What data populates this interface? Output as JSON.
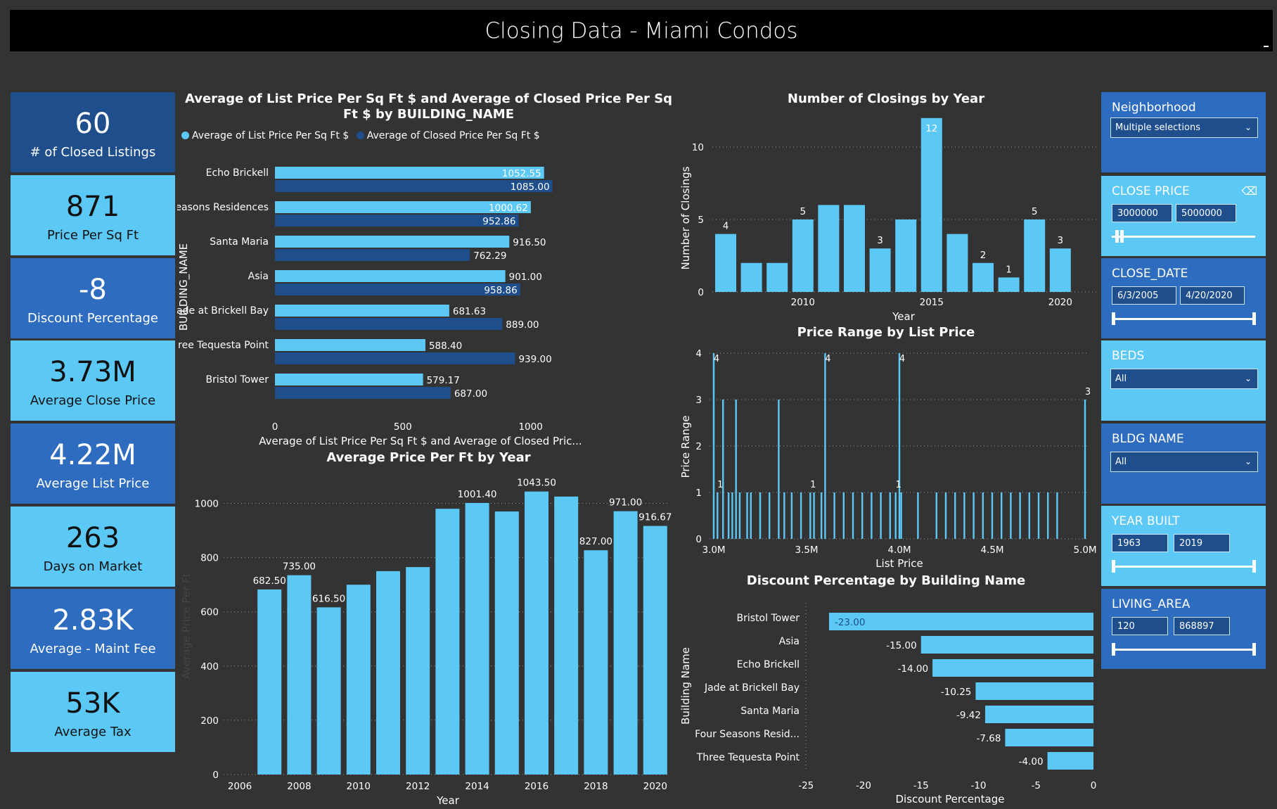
{
  "window": {
    "title": "Closing Data - Miami Condos"
  },
  "kpis": [
    {
      "value": "60",
      "label": "# of Closed Listings"
    },
    {
      "value": "871",
      "label": "Price Per Sq Ft"
    },
    {
      "value": "-8",
      "label": "Discount Percentage"
    },
    {
      "value": "3.73M",
      "label": "Average Close Price"
    },
    {
      "value": "4.22M",
      "label": "Average List Price"
    },
    {
      "value": "263",
      "label": "Days on Market"
    },
    {
      "value": "2.83K",
      "label": "Average - Maint Fee"
    },
    {
      "value": "53K",
      "label": "Average Tax"
    }
  ],
  "slicers": {
    "neighborhood": {
      "label": "Neighborhood",
      "value": "Multiple selections"
    },
    "close_price": {
      "label": "CLOSE PRICE",
      "min": "3000000",
      "max": "5000000"
    },
    "close_date": {
      "label": "CLOSE_DATE",
      "min": "6/3/2005",
      "max": "4/20/2020"
    },
    "beds": {
      "label": "BEDS",
      "value": "All"
    },
    "bldg_name": {
      "label": "BLDG NAME",
      "value": "All"
    },
    "year_built": {
      "label": "YEAR BUILT",
      "min": "1963",
      "max": "2019"
    },
    "living_area": {
      "label": "LIVING_AREA",
      "min": "120",
      "max": "868897"
    }
  },
  "colors": {
    "light": "#5bc8f5",
    "dark": "#1f4e8c",
    "mid": "#2e6cc0",
    "bg": "#333333"
  },
  "icons": {
    "dropdown": "chevron-down-icon",
    "clear": "eraser-icon"
  },
  "chart_data": [
    {
      "type": "bar",
      "orientation": "horizontal",
      "title": "Average of List Price Per Sq Ft $ and Average of Closed Price Per Sq Ft $ by BUILDING_NAME",
      "xlabel": "Average of List Price Per Sq Ft $ and Average of Closed Pric...",
      "ylabel": "BUILDING_NAME",
      "categories": [
        "Echo Brickell",
        "Four Seasons Residences",
        "Santa Maria",
        "Asia",
        "Jade at Brickell Bay",
        "Three Tequesta Point",
        "Bristol Tower"
      ],
      "series": [
        {
          "name": "Average of List Price Per Sq Ft $",
          "values": [
            1052.55,
            1000.62,
            916.5,
            901.0,
            681.63,
            588.4,
            579.17
          ],
          "labels": [
            "1052.55",
            "1000.62",
            "916.50",
            "901.00",
            "681.63",
            "588.40",
            "579.17"
          ]
        },
        {
          "name": "Average of Closed Price Per Sq Ft $",
          "values": [
            1085.0,
            952.86,
            762.29,
            958.86,
            889.0,
            939.0,
            687.0
          ],
          "labels": [
            "1085.00",
            "952.86",
            "762.29",
            "958.86",
            "889.00",
            "939.00",
            "687.00"
          ]
        }
      ],
      "xlim": [
        0,
        1100
      ],
      "xticks": [
        "0",
        "500",
        "1000"
      ],
      "legend": "top-left"
    },
    {
      "type": "bar",
      "title": "Number of Closings by Year",
      "xlabel": "Year",
      "ylabel": "Number of Closings",
      "x": [
        2007,
        2008,
        2009,
        2010,
        2011,
        2012,
        2013,
        2014,
        2015,
        2016,
        2017,
        2018,
        2019,
        2020
      ],
      "values": [
        4,
        2,
        2,
        5,
        6,
        6,
        3,
        5,
        12,
        4,
        2,
        1,
        5,
        3
      ],
      "labels": [
        "4",
        "",
        "",
        "5",
        "",
        "",
        "3",
        "",
        "12",
        "",
        "2",
        "1",
        "5",
        "3"
      ],
      "ylim": [
        0,
        12
      ],
      "yticks": [
        "0",
        "5",
        "10"
      ],
      "xticks": [
        "2010",
        "2015",
        "2020"
      ],
      "grid": true
    },
    {
      "type": "bar",
      "title": "Price Range by List Price",
      "xlabel": "List Price",
      "ylabel": "Price Range",
      "points": [
        [
          3.0,
          4
        ],
        [
          3.02,
          1
        ],
        [
          3.05,
          3
        ],
        [
          3.08,
          1
        ],
        [
          3.1,
          1
        ],
        [
          3.12,
          3
        ],
        [
          3.14,
          1
        ],
        [
          3.18,
          1
        ],
        [
          3.2,
          1
        ],
        [
          3.25,
          1
        ],
        [
          3.3,
          1
        ],
        [
          3.35,
          3
        ],
        [
          3.38,
          1
        ],
        [
          3.42,
          1
        ],
        [
          3.47,
          1
        ],
        [
          3.52,
          1
        ],
        [
          3.54,
          1
        ],
        [
          3.58,
          1
        ],
        [
          3.6,
          4
        ],
        [
          3.65,
          1
        ],
        [
          3.7,
          1
        ],
        [
          3.75,
          1
        ],
        [
          3.8,
          1
        ],
        [
          3.85,
          1
        ],
        [
          3.9,
          1
        ],
        [
          3.95,
          1
        ],
        [
          3.98,
          1
        ],
        [
          4.0,
          4
        ],
        [
          4.01,
          1
        ],
        [
          4.1,
          1
        ],
        [
          4.2,
          1
        ],
        [
          4.25,
          1
        ],
        [
          4.3,
          1
        ],
        [
          4.35,
          1
        ],
        [
          4.4,
          1
        ],
        [
          4.45,
          1
        ],
        [
          4.5,
          1
        ],
        [
          4.55,
          1
        ],
        [
          4.6,
          1
        ],
        [
          4.65,
          1
        ],
        [
          4.7,
          1
        ],
        [
          4.75,
          1
        ],
        [
          4.8,
          1
        ],
        [
          4.85,
          1
        ],
        [
          5.0,
          3
        ]
      ],
      "labels": [
        {
          "x": 3.0,
          "text": "4"
        },
        {
          "x": 3.02,
          "text": "1"
        },
        {
          "x": 3.52,
          "text": "1"
        },
        {
          "x": 3.6,
          "text": "4"
        },
        {
          "x": 3.98,
          "text": "1"
        },
        {
          "x": 4.0,
          "text": "4"
        },
        {
          "x": 5.0,
          "text": "3"
        }
      ],
      "xlim": [
        3.0,
        5.0
      ],
      "ylim": [
        0,
        4
      ],
      "xticks": [
        "3.0M",
        "3.5M",
        "4.0M",
        "4.5M",
        "5.0M"
      ],
      "yticks": [
        "0",
        "1",
        "2",
        "3",
        "4"
      ],
      "grid": true
    },
    {
      "type": "bar",
      "title": "Average Price Per Ft by Year",
      "xlabel": "Year",
      "ylabel": "Average Price Per Ft",
      "x": [
        2007,
        2008,
        2009,
        2010,
        2011,
        2012,
        2013,
        2014,
        2015,
        2016,
        2017,
        2018,
        2019,
        2020
      ],
      "values": [
        682.5,
        735.0,
        616.5,
        700,
        750,
        765,
        980,
        1001.4,
        970,
        1043.5,
        1025,
        827.0,
        971.0,
        916.67
      ],
      "labels": [
        "682.50",
        "735.00",
        "616.50",
        "",
        "",
        "",
        "",
        "1001.40",
        "",
        "1043.50",
        "",
        "827.00",
        "971.00",
        "916.67"
      ],
      "ylim": [
        0,
        1100
      ],
      "yticks": [
        "0",
        "200",
        "400",
        "600",
        "800",
        "1000"
      ],
      "xticks": [
        "2006",
        "2008",
        "2010",
        "2012",
        "2014",
        "2016",
        "2018",
        "2020"
      ],
      "grid": true
    },
    {
      "type": "bar",
      "orientation": "horizontal",
      "title": "Discount Percentage by Building Name",
      "xlabel": "Discount Percentage",
      "ylabel": "Building Name",
      "categories": [
        "Bristol Tower",
        "Asia",
        "Echo Brickell",
        "Jade at Brickell Bay",
        "Santa Maria",
        "Four Seasons Resid...",
        "Three Tequesta Point"
      ],
      "values": [
        -23.0,
        -15.0,
        -14.0,
        -10.25,
        -9.42,
        -7.68,
        -4.0
      ],
      "labels": [
        "-23.00",
        "-15.00",
        "-14.00",
        "-10.25",
        "-9.42",
        "-7.68",
        "-4.00"
      ],
      "xlim": [
        -25,
        0
      ],
      "xticks": [
        "-25",
        "-20",
        "-15",
        "-10",
        "-5",
        "0"
      ]
    }
  ]
}
